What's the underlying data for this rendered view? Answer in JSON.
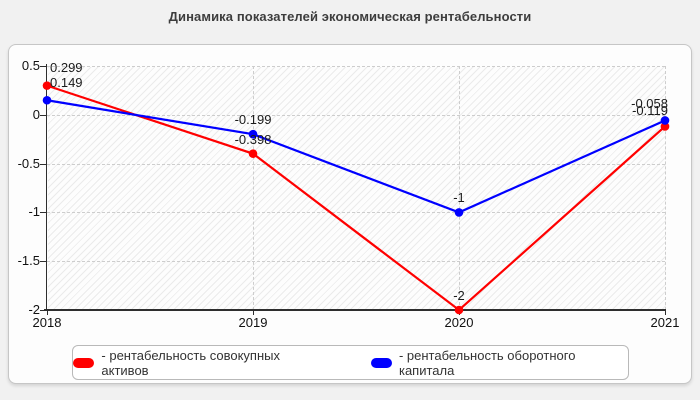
{
  "chart_data": {
    "type": "line",
    "title": "Динамика показателей экономическая рентабельности",
    "x_labels": [
      "2018",
      "2019",
      "2020",
      "2021"
    ],
    "y_ticks": [
      "0.5",
      "0",
      "-0.5",
      "-1",
      "-1.5",
      "-2"
    ],
    "y_tick_values": [
      0.5,
      0,
      -0.5,
      -1,
      -1.5,
      -2
    ],
    "ylim": [
      -2,
      0.5
    ],
    "grid": true,
    "legend_position": "bottom",
    "plot_background": "diagonal-hatch",
    "series": [
      {
        "name": "рентабельность совокупных активов",
        "legend_label": "- рентабельность совокупных активов",
        "color": "#ff0000",
        "values": [
          0.299,
          -0.398,
          -2,
          -0.119
        ],
        "point_labels": [
          "0.299",
          "-0.398",
          "-2",
          "-0.119"
        ]
      },
      {
        "name": "рентабельность оборотного капитала",
        "legend_label": "- рентабельность оборотного капитала",
        "color": "#0000ff",
        "values": [
          0.149,
          -0.199,
          -1,
          -0.058
        ],
        "point_labels": [
          "0.149",
          "-0.199",
          "-1",
          "-0.058"
        ]
      }
    ]
  }
}
